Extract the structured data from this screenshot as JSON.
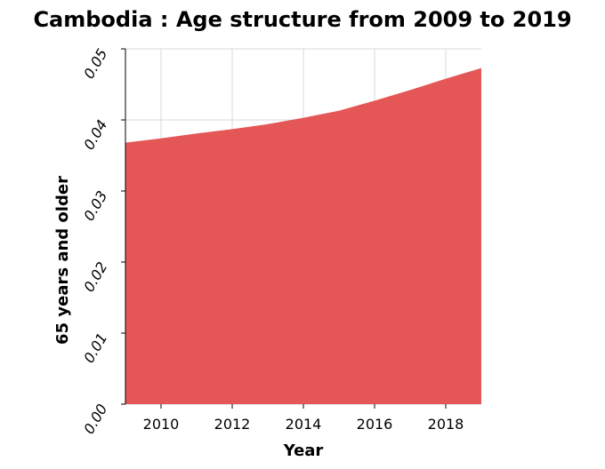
{
  "chart_data": {
    "type": "area",
    "title": "Cambodia : Age structure from 2009 to 2019",
    "xlabel": "Year",
    "ylabel": "65 years and older",
    "xlim": [
      2009,
      2019
    ],
    "ylim": [
      0,
      0.05
    ],
    "xticks": [
      2010,
      2012,
      2014,
      2016,
      2018
    ],
    "xtick_labels": [
      "2010",
      "2012",
      "2014",
      "2016",
      "2018"
    ],
    "yticks": [
      0,
      0.01,
      0.02,
      0.03,
      0.04,
      0.05
    ],
    "ytick_labels": [
      "0.00",
      "0.01",
      "0.02",
      "0.03",
      "0.04",
      "0.05"
    ],
    "grid": true,
    "color": "#e45756",
    "x": [
      2009,
      2010,
      2011,
      2012,
      2013,
      2014,
      2015,
      2016,
      2017,
      2018,
      2019
    ],
    "values": [
      0.0368,
      0.0374,
      0.0381,
      0.0387,
      0.0394,
      0.0403,
      0.0413,
      0.0427,
      0.0442,
      0.0458,
      0.0473
    ]
  }
}
